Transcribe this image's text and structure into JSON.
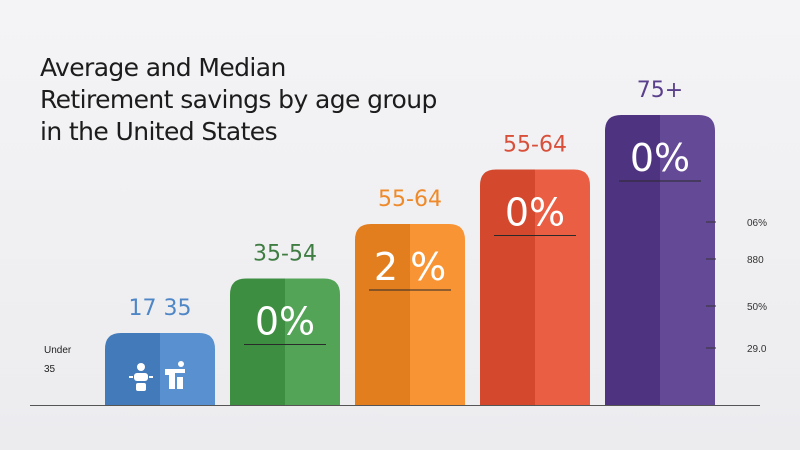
{
  "title": {
    "line1": "Average and Median",
    "line2": "Retirement savings by age group",
    "line3": "in the United States"
  },
  "side_label": {
    "line1": "Under",
    "line2": "35"
  },
  "chart_data": {
    "type": "bar",
    "categories": [
      "17 35",
      "35-54",
      "55-64",
      "55-64",
      "75+"
    ],
    "values": [
      1,
      2,
      3,
      4,
      5
    ],
    "bar_texts": [
      "",
      "0%",
      "2 %",
      "0%",
      "0%"
    ],
    "colors": [
      "#4f86c6",
      "#4a9a4e",
      "#ee8a2a",
      "#e0553a",
      "#5a3f8c"
    ],
    "label_colors": [
      "#4f86c6",
      "#3f7d43",
      "#ee8a2a",
      "#d9503a",
      "#5a3f8c"
    ],
    "right_ticks": [
      "06%",
      "880",
      "50%",
      "29.0"
    ],
    "legend_icons": [
      "person-icon",
      "chair-icon"
    ]
  }
}
